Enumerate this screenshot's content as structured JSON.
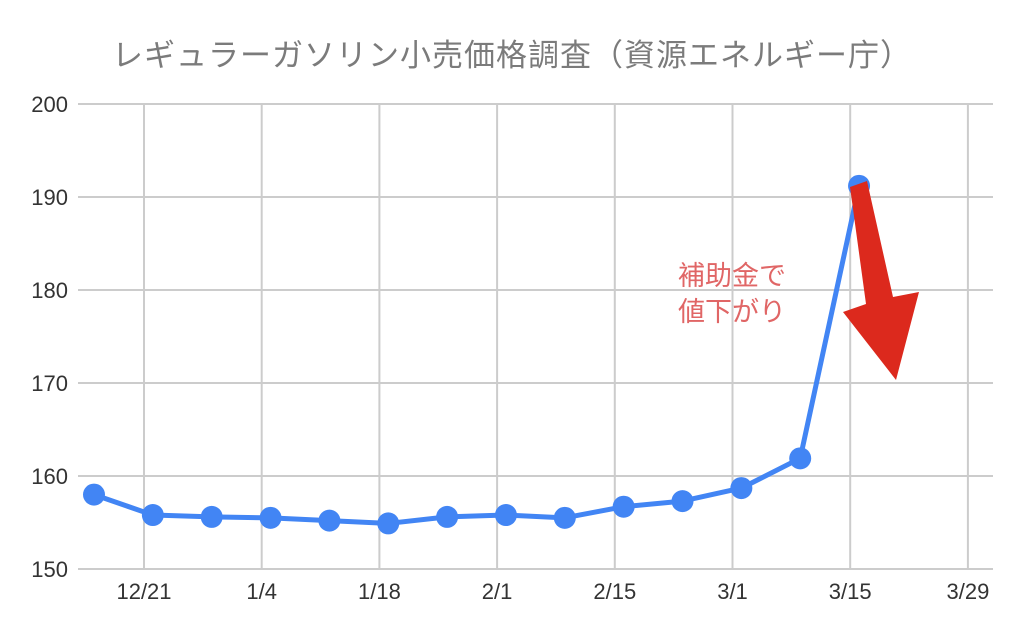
{
  "colors": {
    "line": "#4285f4",
    "point": "#4285f4",
    "arrow": "#dc291d",
    "annotation_text": "#e06666",
    "title_text": "#7b7b7b",
    "tick_label": "#333333",
    "gridline": "#cccccc"
  },
  "chart_data": {
    "type": "line",
    "title": "レギュラーガソリン小売価格調査（資源エネルギー庁）",
    "xlabel": "",
    "ylabel": "",
    "ylim": [
      150,
      200
    ],
    "grid": true,
    "legend": "none",
    "y_ticks": [
      150,
      160,
      170,
      180,
      190,
      200
    ],
    "x_tick_labels": [
      "12/21",
      "1/4",
      "1/18",
      "2/1",
      "2/15",
      "3/1",
      "3/15",
      "3/29"
    ],
    "points_per_tick_interval": 2,
    "series": [
      {
        "values": [
          158.0,
          155.8,
          155.6,
          155.5,
          155.2,
          154.9,
          155.6,
          155.8,
          155.5,
          156.7,
          157.3,
          158.7,
          161.9,
          191.2
        ]
      }
    ],
    "annotation": {
      "line1": "補助金で",
      "line2": "値下がり"
    },
    "arrow_meaning": "価格が大きく下がることを示す赤い下向き矢印"
  }
}
